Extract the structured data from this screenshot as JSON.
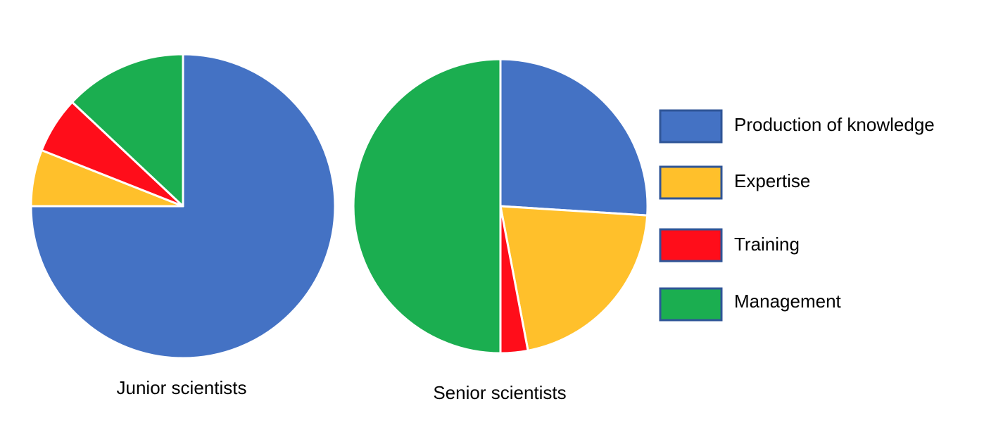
{
  "chart_data": {
    "type": "pie",
    "categories": [
      "Production of knowledge",
      "Expertise",
      "Training",
      "Management"
    ],
    "colors": [
      "#4472C4",
      "#FFC02B",
      "#FF0D1A",
      "#1BAE50"
    ],
    "legend_position": "right",
    "series": [
      {
        "name": "Junior scientists",
        "values": [
          75,
          6,
          6,
          13
        ]
      },
      {
        "name": "Senior scientists",
        "values": [
          26,
          21,
          3,
          50
        ]
      }
    ]
  }
}
